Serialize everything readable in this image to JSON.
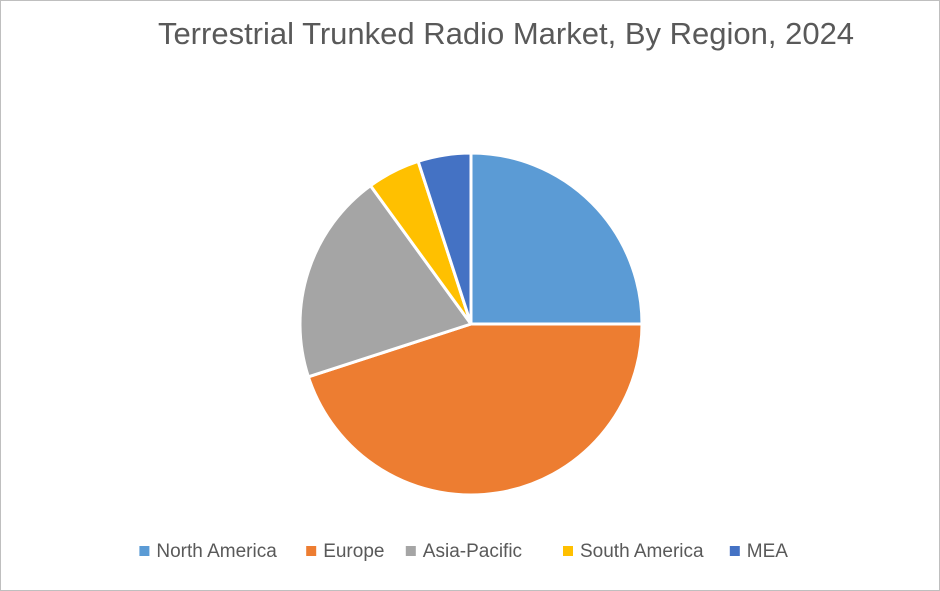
{
  "chart_data": {
    "type": "pie",
    "title": "Terrestrial Trunked Radio Market, By Region, 2024",
    "categories": [
      "North America",
      "Europe",
      "Asia-Pacific",
      "South America",
      "MEA"
    ],
    "values": [
      25,
      45,
      20,
      5,
      5
    ],
    "colors": [
      "#5b9bd5",
      "#ed7d31",
      "#a5a5a5",
      "#ffc000",
      "#4472c4"
    ],
    "legend": "bottom"
  }
}
